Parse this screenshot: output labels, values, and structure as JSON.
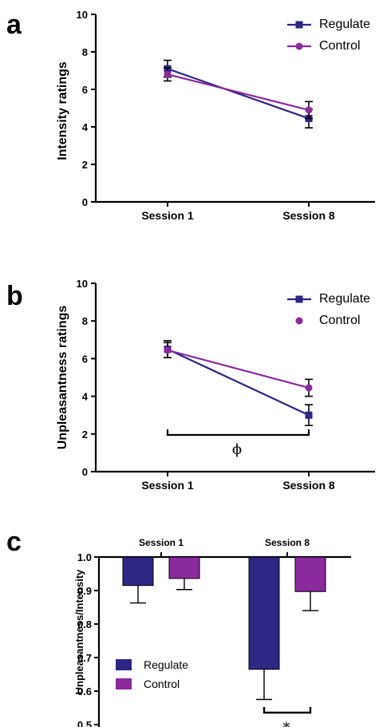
{
  "colors": {
    "regulate": "#2e2684",
    "control": "#8b2a9d",
    "axis": "#000000"
  },
  "chart_data": [
    {
      "panel": "a",
      "type": "line",
      "ylabel": "Intensity ratings",
      "ylim": [
        0,
        10
      ],
      "yticks": [
        "0",
        "2",
        "4",
        "6",
        "8",
        "10"
      ],
      "categories": [
        "Session 1",
        "Session 8"
      ],
      "legend": [
        "Regulate",
        "Control"
      ],
      "series": [
        {
          "name": "Regulate",
          "marker": "square",
          "values": [
            7.1,
            4.45
          ],
          "errors": [
            0.45,
            0.5
          ]
        },
        {
          "name": "Control",
          "marker": "circle",
          "values": [
            6.8,
            4.9
          ],
          "errors": [
            0.35,
            0.45
          ]
        }
      ]
    },
    {
      "panel": "b",
      "type": "line",
      "ylabel": "Unpleasantness ratings",
      "ylim": [
        0,
        10
      ],
      "yticks": [
        "0",
        "2",
        "4",
        "6",
        "8",
        "10"
      ],
      "categories": [
        "Session 1",
        "Session 8"
      ],
      "legend": [
        "Regulate",
        "Control"
      ],
      "annotation": "ϕ",
      "series": [
        {
          "name": "Regulate",
          "marker": "square",
          "values": [
            6.5,
            3.0
          ],
          "errors": [
            0.45,
            0.55
          ]
        },
        {
          "name": "Control",
          "marker": "circle",
          "values": [
            6.45,
            4.45
          ],
          "errors": [
            0.4,
            0.45
          ]
        }
      ]
    },
    {
      "panel": "c",
      "type": "bar",
      "ylabel": "Unpleasantness/Intensity",
      "ylim": [
        0.5,
        1.0
      ],
      "yticks": [
        "0.5",
        "0.6",
        "0.7",
        "0.8",
        "0.9",
        "1.0"
      ],
      "categories": [
        "Session 1",
        "Session 8"
      ],
      "legend": [
        "Regulate",
        "Control"
      ],
      "annotation": "*",
      "series": [
        {
          "name": "Regulate",
          "values": [
            0.915,
            0.665
          ],
          "errors": [
            0.052,
            0.09
          ]
        },
        {
          "name": "Control",
          "values": [
            0.936,
            0.897
          ],
          "errors": [
            0.033,
            0.057
          ]
        }
      ]
    }
  ]
}
